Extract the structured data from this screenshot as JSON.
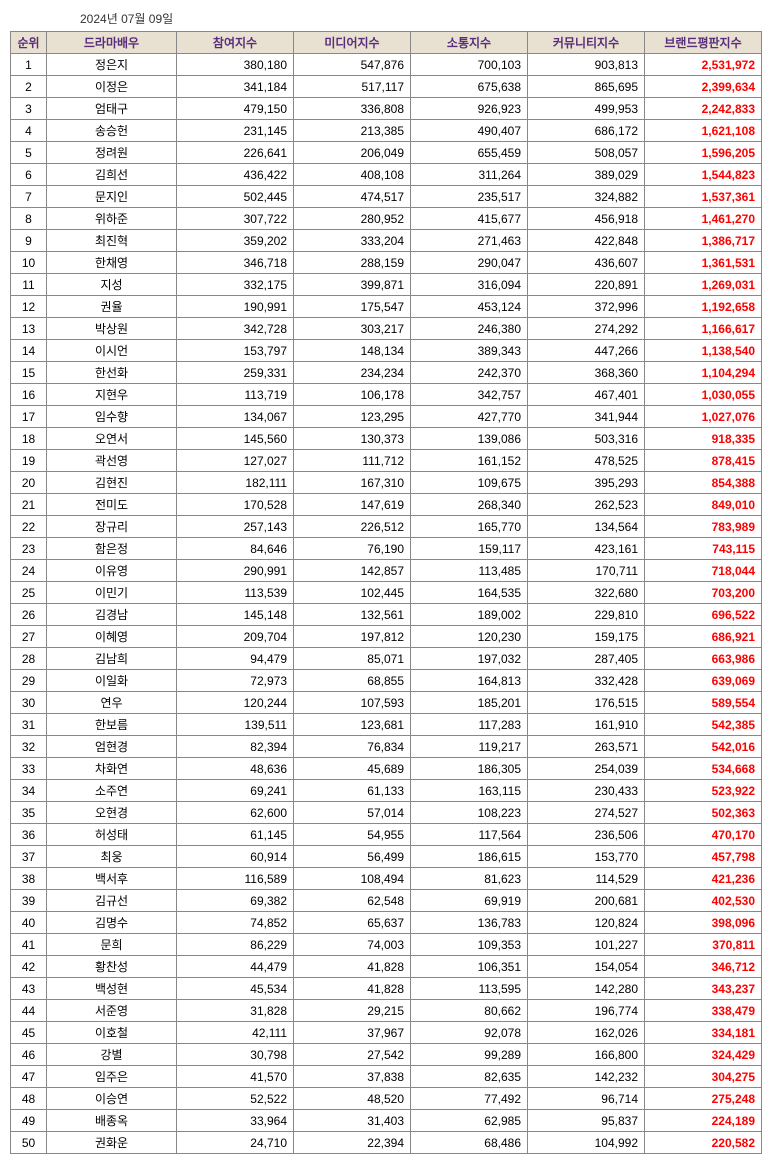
{
  "date": "2024년 07월 09일",
  "headers": {
    "rank": "순위",
    "actor": "드라마배우",
    "participation": "참여지수",
    "media": "미디어지수",
    "communication": "소통지수",
    "community": "커뮤니티지수",
    "brand": "브랜드평판지수"
  },
  "rows": [
    {
      "rank": "1",
      "name": "정은지",
      "p": "380,180",
      "m": "547,876",
      "s": "700,103",
      "c": "903,813",
      "b": "2,531,972"
    },
    {
      "rank": "2",
      "name": "이정은",
      "p": "341,184",
      "m": "517,117",
      "s": "675,638",
      "c": "865,695",
      "b": "2,399,634"
    },
    {
      "rank": "3",
      "name": "엄태구",
      "p": "479,150",
      "m": "336,808",
      "s": "926,923",
      "c": "499,953",
      "b": "2,242,833"
    },
    {
      "rank": "4",
      "name": "송승헌",
      "p": "231,145",
      "m": "213,385",
      "s": "490,407",
      "c": "686,172",
      "b": "1,621,108"
    },
    {
      "rank": "5",
      "name": "정려원",
      "p": "226,641",
      "m": "206,049",
      "s": "655,459",
      "c": "508,057",
      "b": "1,596,205"
    },
    {
      "rank": "6",
      "name": "김희선",
      "p": "436,422",
      "m": "408,108",
      "s": "311,264",
      "c": "389,029",
      "b": "1,544,823"
    },
    {
      "rank": "7",
      "name": "문지인",
      "p": "502,445",
      "m": "474,517",
      "s": "235,517",
      "c": "324,882",
      "b": "1,537,361"
    },
    {
      "rank": "8",
      "name": "위하준",
      "p": "307,722",
      "m": "280,952",
      "s": "415,677",
      "c": "456,918",
      "b": "1,461,270"
    },
    {
      "rank": "9",
      "name": "최진혁",
      "p": "359,202",
      "m": "333,204",
      "s": "271,463",
      "c": "422,848",
      "b": "1,386,717"
    },
    {
      "rank": "10",
      "name": "한채영",
      "p": "346,718",
      "m": "288,159",
      "s": "290,047",
      "c": "436,607",
      "b": "1,361,531"
    },
    {
      "rank": "11",
      "name": "지성",
      "p": "332,175",
      "m": "399,871",
      "s": "316,094",
      "c": "220,891",
      "b": "1,269,031"
    },
    {
      "rank": "12",
      "name": "권율",
      "p": "190,991",
      "m": "175,547",
      "s": "453,124",
      "c": "372,996",
      "b": "1,192,658"
    },
    {
      "rank": "13",
      "name": "박상원",
      "p": "342,728",
      "m": "303,217",
      "s": "246,380",
      "c": "274,292",
      "b": "1,166,617"
    },
    {
      "rank": "14",
      "name": "이시언",
      "p": "153,797",
      "m": "148,134",
      "s": "389,343",
      "c": "447,266",
      "b": "1,138,540"
    },
    {
      "rank": "15",
      "name": "한선화",
      "p": "259,331",
      "m": "234,234",
      "s": "242,370",
      "c": "368,360",
      "b": "1,104,294"
    },
    {
      "rank": "16",
      "name": "지현우",
      "p": "113,719",
      "m": "106,178",
      "s": "342,757",
      "c": "467,401",
      "b": "1,030,055"
    },
    {
      "rank": "17",
      "name": "임수향",
      "p": "134,067",
      "m": "123,295",
      "s": "427,770",
      "c": "341,944",
      "b": "1,027,076"
    },
    {
      "rank": "18",
      "name": "오연서",
      "p": "145,560",
      "m": "130,373",
      "s": "139,086",
      "c": "503,316",
      "b": "918,335"
    },
    {
      "rank": "19",
      "name": "곽선영",
      "p": "127,027",
      "m": "111,712",
      "s": "161,152",
      "c": "478,525",
      "b": "878,415"
    },
    {
      "rank": "20",
      "name": "김현진",
      "p": "182,111",
      "m": "167,310",
      "s": "109,675",
      "c": "395,293",
      "b": "854,388"
    },
    {
      "rank": "21",
      "name": "전미도",
      "p": "170,528",
      "m": "147,619",
      "s": "268,340",
      "c": "262,523",
      "b": "849,010"
    },
    {
      "rank": "22",
      "name": "장규리",
      "p": "257,143",
      "m": "226,512",
      "s": "165,770",
      "c": "134,564",
      "b": "783,989"
    },
    {
      "rank": "23",
      "name": "함은정",
      "p": "84,646",
      "m": "76,190",
      "s": "159,117",
      "c": "423,161",
      "b": "743,115"
    },
    {
      "rank": "24",
      "name": "이유영",
      "p": "290,991",
      "m": "142,857",
      "s": "113,485",
      "c": "170,711",
      "b": "718,044"
    },
    {
      "rank": "25",
      "name": "이민기",
      "p": "113,539",
      "m": "102,445",
      "s": "164,535",
      "c": "322,680",
      "b": "703,200"
    },
    {
      "rank": "26",
      "name": "김경남",
      "p": "145,148",
      "m": "132,561",
      "s": "189,002",
      "c": "229,810",
      "b": "696,522"
    },
    {
      "rank": "27",
      "name": "이혜영",
      "p": "209,704",
      "m": "197,812",
      "s": "120,230",
      "c": "159,175",
      "b": "686,921"
    },
    {
      "rank": "28",
      "name": "김남희",
      "p": "94,479",
      "m": "85,071",
      "s": "197,032",
      "c": "287,405",
      "b": "663,986"
    },
    {
      "rank": "29",
      "name": "이일화",
      "p": "72,973",
      "m": "68,855",
      "s": "164,813",
      "c": "332,428",
      "b": "639,069"
    },
    {
      "rank": "30",
      "name": "연우",
      "p": "120,244",
      "m": "107,593",
      "s": "185,201",
      "c": "176,515",
      "b": "589,554"
    },
    {
      "rank": "31",
      "name": "한보름",
      "p": "139,511",
      "m": "123,681",
      "s": "117,283",
      "c": "161,910",
      "b": "542,385"
    },
    {
      "rank": "32",
      "name": "엄현경",
      "p": "82,394",
      "m": "76,834",
      "s": "119,217",
      "c": "263,571",
      "b": "542,016"
    },
    {
      "rank": "33",
      "name": "차화연",
      "p": "48,636",
      "m": "45,689",
      "s": "186,305",
      "c": "254,039",
      "b": "534,668"
    },
    {
      "rank": "34",
      "name": "소주연",
      "p": "69,241",
      "m": "61,133",
      "s": "163,115",
      "c": "230,433",
      "b": "523,922"
    },
    {
      "rank": "35",
      "name": "오현경",
      "p": "62,600",
      "m": "57,014",
      "s": "108,223",
      "c": "274,527",
      "b": "502,363"
    },
    {
      "rank": "36",
      "name": "허성태",
      "p": "61,145",
      "m": "54,955",
      "s": "117,564",
      "c": "236,506",
      "b": "470,170"
    },
    {
      "rank": "37",
      "name": "최웅",
      "p": "60,914",
      "m": "56,499",
      "s": "186,615",
      "c": "153,770",
      "b": "457,798"
    },
    {
      "rank": "38",
      "name": "백서후",
      "p": "116,589",
      "m": "108,494",
      "s": "81,623",
      "c": "114,529",
      "b": "421,236"
    },
    {
      "rank": "39",
      "name": "김규선",
      "p": "69,382",
      "m": "62,548",
      "s": "69,919",
      "c": "200,681",
      "b": "402,530"
    },
    {
      "rank": "40",
      "name": "김명수",
      "p": "74,852",
      "m": "65,637",
      "s": "136,783",
      "c": "120,824",
      "b": "398,096"
    },
    {
      "rank": "41",
      "name": "문희",
      "p": "86,229",
      "m": "74,003",
      "s": "109,353",
      "c": "101,227",
      "b": "370,811"
    },
    {
      "rank": "42",
      "name": "황찬성",
      "p": "44,479",
      "m": "41,828",
      "s": "106,351",
      "c": "154,054",
      "b": "346,712"
    },
    {
      "rank": "43",
      "name": "백성현",
      "p": "45,534",
      "m": "41,828",
      "s": "113,595",
      "c": "142,280",
      "b": "343,237"
    },
    {
      "rank": "44",
      "name": "서준영",
      "p": "31,828",
      "m": "29,215",
      "s": "80,662",
      "c": "196,774",
      "b": "338,479"
    },
    {
      "rank": "45",
      "name": "이호철",
      "p": "42,111",
      "m": "37,967",
      "s": "92,078",
      "c": "162,026",
      "b": "334,181"
    },
    {
      "rank": "46",
      "name": "강별",
      "p": "30,798",
      "m": "27,542",
      "s": "99,289",
      "c": "166,800",
      "b": "324,429"
    },
    {
      "rank": "47",
      "name": "임주은",
      "p": "41,570",
      "m": "37,838",
      "s": "82,635",
      "c": "142,232",
      "b": "304,275"
    },
    {
      "rank": "48",
      "name": "이승연",
      "p": "52,522",
      "m": "48,520",
      "s": "77,492",
      "c": "96,714",
      "b": "275,248"
    },
    {
      "rank": "49",
      "name": "배종옥",
      "p": "33,964",
      "m": "31,403",
      "s": "62,985",
      "c": "95,837",
      "b": "224,189"
    },
    {
      "rank": "50",
      "name": "권화운",
      "p": "24,710",
      "m": "22,394",
      "s": "68,486",
      "c": "104,992",
      "b": "220,582"
    }
  ]
}
